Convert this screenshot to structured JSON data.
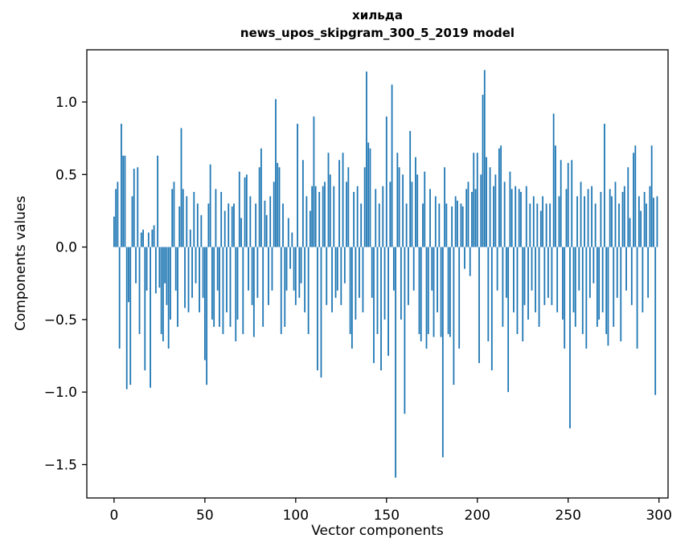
{
  "chart_data": {
    "type": "bar",
    "title_line1": "хильда",
    "title_line2": "news_upos_skipgram_300_5_2019 model",
    "xlabel": "Vector components",
    "ylabel": "Components values",
    "legend": null,
    "grid": false,
    "bar_color": "#1f77b4",
    "axis_color": "#000000",
    "xlim": [
      -15,
      305
    ],
    "ylim": [
      -1.73,
      1.36
    ],
    "xticks": [
      0,
      50,
      100,
      150,
      200,
      250,
      300
    ],
    "yticks": [
      1.0,
      0.5,
      0.0,
      -0.5,
      -1.0,
      -1.5
    ],
    "n_components": 300,
    "values": [
      0.21,
      0.4,
      0.45,
      -0.7,
      0.85,
      0.63,
      0.63,
      -0.98,
      -0.38,
      -0.95,
      0.35,
      0.54,
      -0.25,
      0.55,
      -0.6,
      0.1,
      0.12,
      -0.85,
      -0.3,
      0.1,
      -0.97,
      0.12,
      0.15,
      -0.32,
      0.63,
      -0.28,
      -0.6,
      -0.65,
      -0.25,
      -0.4,
      -0.7,
      -0.5,
      0.4,
      0.45,
      -0.3,
      -0.55,
      0.28,
      0.82,
      0.4,
      -0.42,
      0.35,
      -0.45,
      0.12,
      -0.35,
      0.38,
      -0.25,
      0.3,
      -0.45,
      0.22,
      -0.35,
      -0.78,
      -0.95,
      0.3,
      0.57,
      -0.5,
      -0.55,
      0.4,
      -0.3,
      -0.55,
      0.38,
      -0.6,
      0.25,
      -0.45,
      0.3,
      -0.55,
      0.28,
      0.3,
      -0.65,
      -0.5,
      0.52,
      0.2,
      -0.6,
      0.48,
      0.5,
      -0.3,
      0.35,
      -0.4,
      -0.62,
      0.3,
      -0.35,
      0.55,
      0.68,
      -0.55,
      0.32,
      0.22,
      -0.4,
      0.35,
      -0.3,
      0.45,
      1.02,
      0.58,
      0.55,
      -0.6,
      0.3,
      -0.55,
      -0.3,
      0.2,
      -0.15,
      0.1,
      -0.3,
      -0.4,
      0.85,
      -0.35,
      -0.25,
      0.6,
      -0.45,
      0.35,
      -0.6,
      0.25,
      0.42,
      0.9,
      0.42,
      -0.85,
      0.38,
      -0.9,
      0.42,
      0.45,
      -0.4,
      0.65,
      0.5,
      -0.45,
      0.42,
      -0.35,
      -0.3,
      0.6,
      -0.4,
      0.65,
      -0.25,
      0.45,
      0.55,
      -0.6,
      -0.7,
      0.38,
      -0.5,
      0.42,
      -0.35,
      0.3,
      -0.45,
      0.55,
      1.21,
      0.72,
      0.68,
      -0.35,
      -0.8,
      0.4,
      -0.6,
      0.3,
      -0.85,
      0.42,
      -0.5,
      0.9,
      -0.75,
      0.45,
      1.12,
      -0.3,
      -1.59,
      0.65,
      0.55,
      -0.5,
      0.5,
      -1.15,
      0.3,
      -0.4,
      0.8,
      0.45,
      -0.3,
      0.62,
      0.5,
      -0.6,
      -0.65,
      0.3,
      0.52,
      -0.7,
      -0.6,
      0.4,
      -0.3,
      -0.62,
      0.35,
      -0.45,
      0.3,
      -0.62,
      -1.45,
      0.55,
      0.3,
      -0.6,
      -0.62,
      0.28,
      -0.95,
      0.35,
      0.32,
      -0.7,
      0.3,
      0.28,
      -0.15,
      0.4,
      0.45,
      -0.2,
      0.38,
      0.65,
      0.4,
      0.65,
      -0.8,
      0.5,
      1.05,
      1.22,
      0.62,
      -0.65,
      0.55,
      -0.85,
      0.42,
      0.5,
      -0.3,
      0.68,
      0.7,
      -0.55,
      0.45,
      -0.35,
      -1.0,
      0.52,
      0.4,
      -0.45,
      0.42,
      -0.6,
      0.4,
      0.38,
      -0.65,
      -0.4,
      0.42,
      -0.5,
      0.3,
      -0.3,
      0.35,
      -0.45,
      0.3,
      -0.55,
      0.25,
      0.35,
      -0.4,
      0.3,
      -0.35,
      0.3,
      -0.4,
      0.92,
      0.7,
      -0.45,
      0.35,
      0.6,
      -0.5,
      -0.7,
      0.4,
      0.58,
      -1.25,
      0.6,
      -0.45,
      -0.55,
      0.35,
      -0.3,
      0.45,
      -0.6,
      0.35,
      -0.7,
      0.4,
      -0.35,
      0.42,
      -0.25,
      0.3,
      -0.55,
      -0.5,
      0.38,
      -0.45,
      0.85,
      -0.6,
      -0.68,
      0.4,
      0.35,
      -0.55,
      0.45,
      -0.35,
      0.3,
      -0.65,
      0.38,
      0.42,
      -0.3,
      0.55,
      0.2,
      -0.4,
      0.65,
      0.7,
      -0.7,
      0.35,
      0.25,
      -0.45,
      0.38,
      0.3,
      -0.35,
      0.42,
      0.7,
      0.34,
      -1.02,
      0.35
    ]
  }
}
